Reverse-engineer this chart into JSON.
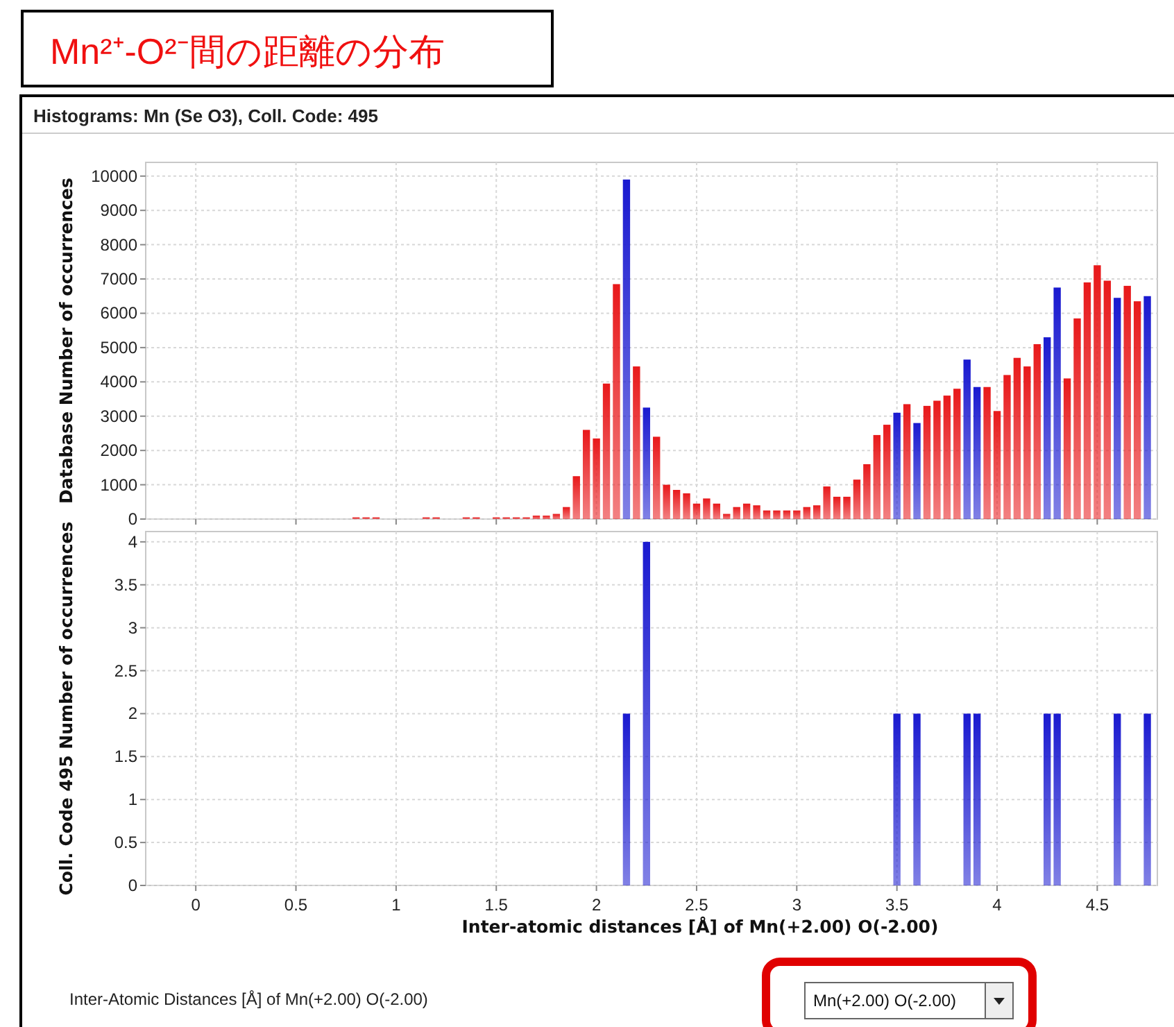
{
  "chart_data": [
    {
      "type": "histogram",
      "title": "Mn²⁺-O²⁻間の距離の分布",
      "subtitle": "Histograms: Mn (Se O3), Coll. Code: 495",
      "ylabel": "Database Number of occurrences",
      "bins": [
        0.775,
        0.825,
        0.875,
        0.925,
        0.975,
        1.025,
        1.075,
        1.125,
        1.175,
        1.225,
        1.275,
        1.325,
        1.375,
        1.425,
        1.475,
        1.525,
        1.575,
        1.625,
        1.675,
        1.725,
        1.775,
        1.825,
        1.875,
        1.925,
        1.975,
        2.025,
        2.075,
        2.125,
        2.175,
        2.225,
        2.275,
        2.325,
        2.375,
        2.425,
        2.475,
        2.525,
        2.575,
        2.625,
        2.675,
        2.725,
        2.775,
        2.825,
        2.875,
        2.925,
        2.975,
        3.025,
        3.075,
        3.125,
        3.175,
        3.225,
        3.275,
        3.325,
        3.375,
        3.425,
        3.475,
        3.525,
        3.575,
        3.625,
        3.675,
        3.725,
        3.775,
        3.825,
        3.875,
        3.925,
        3.975,
        4.025,
        4.075,
        4.125,
        4.175,
        4.225,
        4.275,
        4.325,
        4.375,
        4.425,
        4.475,
        4.525,
        4.575,
        4.625,
        4.675,
        4.725,
        4.775
      ],
      "values": [
        50,
        50,
        50,
        0,
        0,
        0,
        0,
        50,
        50,
        0,
        0,
        50,
        50,
        0,
        50,
        50,
        50,
        50,
        100,
        100,
        150,
        350,
        1250,
        2600,
        2350,
        3950,
        6850,
        9900,
        4450,
        3250,
        2400,
        1000,
        850,
        750,
        450,
        600,
        450,
        150,
        350,
        450,
        400,
        250,
        250,
        250,
        250,
        350,
        400,
        950,
        650,
        650,
        1150,
        1600,
        2450,
        2750,
        3100,
        3350,
        2800,
        3300,
        3450,
        3600,
        3800,
        4650,
        3850,
        3850,
        3150,
        4200,
        4700,
        4450,
        5100,
        5300,
        6750,
        4100,
        5850,
        6900,
        7400,
        6950,
        6450,
        6800,
        6350,
        6500
      ],
      "colors": [
        "#e8191b",
        "#e8191b",
        "#e8191b",
        "#e8191b",
        "#e8191b",
        "#e8191b",
        "#e8191b",
        "#e8191b",
        "#e8191b",
        "#e8191b",
        "#e8191b",
        "#e8191b",
        "#e8191b",
        "#e8191b",
        "#e8191b",
        "#e8191b",
        "#e8191b",
        "#e8191b",
        "#e8191b",
        "#e8191b",
        "#e8191b",
        "#e8191b",
        "#e8191b",
        "#e8191b",
        "#e8191b",
        "#e8191b",
        "#e8191b",
        "#1a1ad0",
        "#e8191b",
        "#1a1ad0",
        "#e8191b",
        "#e8191b",
        "#e8191b",
        "#e8191b",
        "#e8191b",
        "#e8191b",
        "#e8191b",
        "#e8191b",
        "#e8191b",
        "#e8191b",
        "#e8191b",
        "#e8191b",
        "#e8191b",
        "#e8191b",
        "#e8191b",
        "#e8191b",
        "#e8191b",
        "#e8191b",
        "#e8191b",
        "#e8191b",
        "#e8191b",
        "#e8191b",
        "#e8191b",
        "#e8191b",
        "#1a1ad0",
        "#e8191b",
        "#1a1ad0",
        "#e8191b",
        "#e8191b",
        "#e8191b",
        "#e8191b",
        "#1a1ad0",
        "#1a1ad0",
        "#e8191b",
        "#e8191b",
        "#e8191b",
        "#e8191b",
        "#e8191b",
        "#e8191b",
        "#1a1ad0",
        "#1a1ad0",
        "#e8191b",
        "#e8191b",
        "#e8191b",
        "#e8191b",
        "#e8191b",
        "#1a1ad0",
        "#e8191b",
        "#e8191b",
        "#1a1ad0"
      ],
      "xlim": [
        -0.25,
        4.8
      ],
      "xticks": [
        0,
        0.5,
        1,
        1.5,
        2,
        2.5,
        3,
        3.5,
        4,
        4.5
      ],
      "ylim": [
        0,
        10400
      ],
      "yticks": [
        0,
        1000,
        2000,
        3000,
        4000,
        5000,
        6000,
        7000,
        8000,
        9000,
        10000
      ],
      "grid": true,
      "tick_labels": "y"
    },
    {
      "type": "histogram",
      "ylabel": "Coll. Code 495 Number of occurrences",
      "xlabel": "Inter-atomic distances [Å] of Mn(+2.00) O(-2.00)",
      "annotations": [
        "Inter-Atomic Distances [Å] of Mn(+2.00) O(-2.00)",
        "Mn(+2.00) O(-2.00)"
      ],
      "bins": [
        0.775,
        0.825,
        0.875,
        0.925,
        0.975,
        1.025,
        1.075,
        1.125,
        1.175,
        1.225,
        1.275,
        1.325,
        1.375,
        1.425,
        1.475,
        1.525,
        1.575,
        1.625,
        1.675,
        1.725,
        1.775,
        1.825,
        1.875,
        1.925,
        1.975,
        2.025,
        2.075,
        2.125,
        2.175,
        2.225,
        2.275,
        2.325,
        2.375,
        2.425,
        2.475,
        2.525,
        2.575,
        2.625,
        2.675,
        2.725,
        2.775,
        2.825,
        2.875,
        2.925,
        2.975,
        3.025,
        3.075,
        3.125,
        3.175,
        3.225,
        3.275,
        3.325,
        3.375,
        3.425,
        3.475,
        3.525,
        3.575,
        3.625,
        3.675,
        3.725,
        3.775,
        3.825,
        3.875,
        3.925,
        3.975,
        4.025,
        4.075,
        4.125,
        4.175,
        4.225,
        4.275,
        4.325,
        4.375,
        4.425,
        4.475,
        4.525,
        4.575,
        4.625,
        4.675,
        4.725,
        4.775
      ],
      "values": [
        0,
        0,
        0,
        0,
        0,
        0,
        0,
        0,
        0,
        0,
        0,
        0,
        0,
        0,
        0,
        0,
        0,
        0,
        0,
        0,
        0,
        0,
        0,
        0,
        0,
        0,
        0,
        2,
        0,
        4,
        0,
        0,
        0,
        0,
        0,
        0,
        0,
        0,
        0,
        0,
        0,
        0,
        0,
        0,
        0,
        0,
        0,
        0,
        0,
        0,
        0,
        0,
        0,
        0,
        2,
        0,
        2,
        0,
        0,
        0,
        0,
        2,
        2,
        0,
        0,
        0,
        0,
        0,
        0,
        2,
        2,
        0,
        0,
        0,
        0,
        0,
        2,
        0,
        0,
        2
      ],
      "color": "#1a1ad0",
      "xlim": [
        -0.25,
        4.8
      ],
      "xticks": [
        0,
        0.5,
        1,
        1.5,
        2,
        2.5,
        3,
        3.5,
        4,
        4.5
      ],
      "ylim": [
        0,
        4.12
      ],
      "yticks": [
        0,
        0.5,
        1,
        1.5,
        2,
        2.5,
        3,
        3.5,
        4
      ],
      "grid": true
    }
  ]
}
